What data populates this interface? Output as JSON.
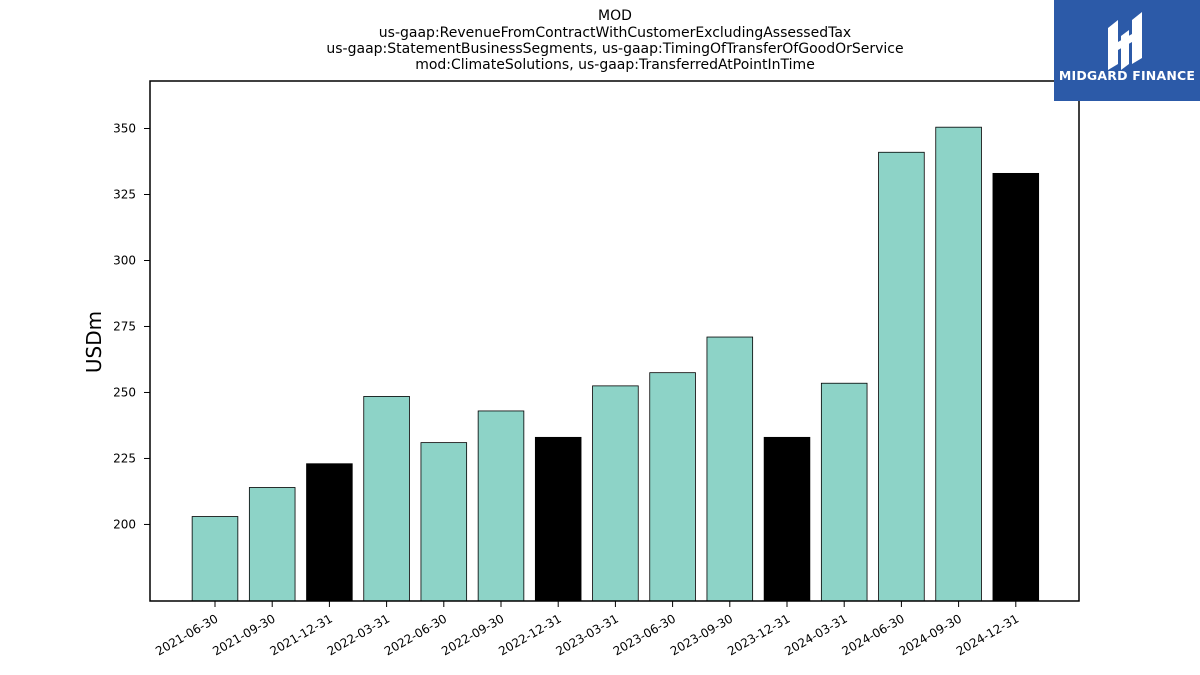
{
  "chart_data": {
    "type": "bar",
    "title_lines": [
      "MOD",
      "us-gaap:RevenueFromContractWithCustomerExcludingAssessedTax",
      "us-gaap:StatementBusinessSegments, us-gaap:TimingOfTransferOfGoodOrService",
      "mod:ClimateSolutions, us-gaap:TransferredAtPointInTime"
    ],
    "ylabel": "USDm",
    "xlabel": "",
    "categories": [
      "2021-06-30",
      "2021-09-30",
      "2021-12-31",
      "2022-03-31",
      "2022-06-30",
      "2022-09-30",
      "2022-12-31",
      "2023-03-31",
      "2023-06-30",
      "2023-09-30",
      "2023-12-31",
      "2024-03-31",
      "2024-06-30",
      "2024-09-30",
      "2024-12-31"
    ],
    "values": [
      203,
      214,
      223,
      248.5,
      231,
      243,
      233,
      252.5,
      257.5,
      271,
      233,
      253.5,
      341,
      350.5,
      333
    ],
    "bar_colors": [
      "#8dd3c7",
      "#8dd3c7",
      "#000000",
      "#8dd3c7",
      "#8dd3c7",
      "#8dd3c7",
      "#000000",
      "#8dd3c7",
      "#8dd3c7",
      "#8dd3c7",
      "#000000",
      "#8dd3c7",
      "#8dd3c7",
      "#8dd3c7",
      "#000000"
    ],
    "ylim": [
      171,
      368
    ],
    "yticks": [
      200,
      225,
      250,
      275,
      300,
      325,
      350
    ],
    "grid": false,
    "legend": "none"
  },
  "logo": {
    "text": "MIDGARD FINANCE",
    "background": "#2c5aa8",
    "icon": "midgard-logo-icon"
  }
}
